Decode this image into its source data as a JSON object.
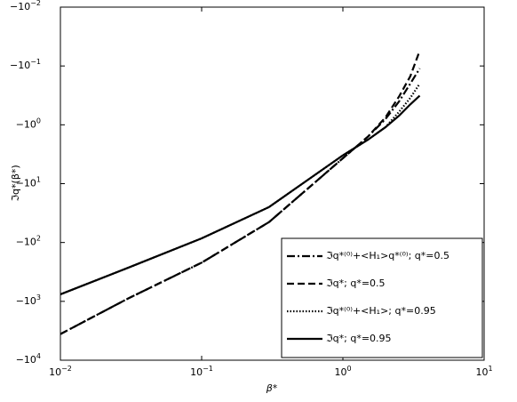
{
  "chart_data": {
    "type": "line",
    "x_label": "β*",
    "y_label": "ℑq*(β*)",
    "xscale": "log",
    "yscale": "log",
    "xlim": [
      0.01,
      10
    ],
    "xticks": [
      {
        "value": 0.01,
        "label": "10",
        "exponent": "−2"
      },
      {
        "value": 0.1,
        "label": "10",
        "exponent": "−1"
      },
      {
        "value": 1,
        "label": "10",
        "exponent": "0"
      },
      {
        "value": 10,
        "label": "10",
        "exponent": "1"
      }
    ],
    "ylim": [
      -0.01,
      -10000
    ],
    "yticks": [
      {
        "value": -0.01,
        "label": "−10",
        "exponent": "−2"
      },
      {
        "value": -0.1,
        "label": "−10",
        "exponent": "−1"
      },
      {
        "value": -1,
        "label": "−10",
        "exponent": "0"
      },
      {
        "value": -10,
        "label": "−10",
        "exponent": "1"
      },
      {
        "value": -100,
        "label": "−10",
        "exponent": "2"
      },
      {
        "value": -1000,
        "label": "−10",
        "exponent": "3"
      },
      {
        "value": -10000,
        "label": "−10",
        "exponent": "4"
      }
    ],
    "legend": "lower right",
    "x": [
      0.01,
      0.03,
      0.1,
      0.3,
      1,
      1.5,
      2,
      2.5,
      3,
      3.5
    ],
    "series": [
      {
        "name": "ℑq*⁽⁰⁾+<H₁>q*⁽⁰⁾; q*=0.5",
        "color": "#000000",
        "dash": "9 3 2 3",
        "values": [
          -3600,
          -900,
          -220,
          -45,
          -3.7,
          -1.6,
          -0.8,
          -0.4,
          -0.2,
          -0.11
        ]
      },
      {
        "name": "ℑq*; q*=0.5",
        "color": "#000000",
        "dash": "8 4",
        "values": [
          -3600,
          -900,
          -220,
          -45,
          -3.7,
          -1.6,
          -0.75,
          -0.33,
          -0.15,
          -0.055
        ]
      },
      {
        "name": "ℑq*⁽⁰⁾+<H₁>; q*=0.95",
        "color": "#000000",
        "dash": "1.5 2",
        "values": [
          -760,
          -270,
          -85,
          -25,
          -3.3,
          -1.8,
          -1.1,
          -0.6,
          -0.35,
          -0.2
        ]
      },
      {
        "name": "ℑq*; q*=0.95",
        "color": "#000000",
        "dash": "none",
        "values": [
          -760,
          -270,
          -85,
          -25,
          -3.3,
          -1.8,
          -1.1,
          -0.7,
          -0.45,
          -0.32
        ]
      }
    ]
  }
}
